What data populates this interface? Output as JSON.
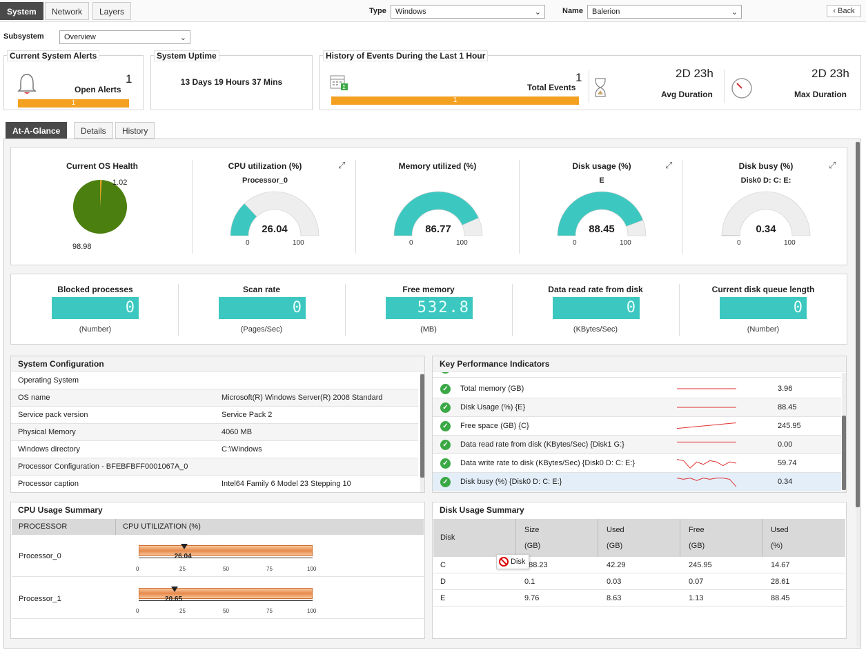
{
  "top_tabs": [
    "System",
    "Network",
    "Layers"
  ],
  "type": {
    "label": "Type",
    "value": "Windows"
  },
  "name": {
    "label": "Name",
    "value": "Balerion"
  },
  "back": "Back",
  "subsystem": {
    "label": "Subsystem",
    "value": "Overview"
  },
  "alerts": {
    "title": "Current System Alerts",
    "count": "1",
    "label": "Open Alerts",
    "bar": "1"
  },
  "uptime": {
    "title": "System Uptime",
    "value": "13 Days 19 Hours 37 Mins"
  },
  "history": {
    "title": "History of Events During the Last 1 Hour",
    "count": "1",
    "label": "Total Events",
    "bar": "1",
    "avg_value": "2D 23h",
    "avg_label": "Avg Duration",
    "max_value": "2D 23h",
    "max_label": "Max Duration"
  },
  "view_tabs": [
    "At-A-Glance",
    "Details",
    "History"
  ],
  "os_health": {
    "title": "Current OS Health",
    "slices": [
      {
        "label": "1.02",
        "value": 1.02,
        "color": "#e8a020"
      },
      {
        "label": "98.98",
        "value": 98.98,
        "color": "#4b7f0f"
      }
    ]
  },
  "gauges": [
    {
      "title": "CPU utilization (%)",
      "sub": "Processor_0",
      "value": 26.04,
      "display": "26.04",
      "min": "0",
      "max": "100"
    },
    {
      "title": "Memory utilized (%)",
      "sub": "",
      "value": 86.77,
      "display": "86.77",
      "min": "0",
      "max": "100"
    },
    {
      "title": "Disk usage (%)",
      "sub": "E",
      "value": 88.45,
      "display": "88.45",
      "min": "0",
      "max": "100"
    },
    {
      "title": "Disk busy (%)",
      "sub": "Disk0 D: C: E:",
      "value": 0.34,
      "display": "0.34",
      "min": "0",
      "max": "100"
    }
  ],
  "metrics": [
    {
      "title": "Blocked processes",
      "value": "0",
      "unit": "(Number)"
    },
    {
      "title": "Scan rate",
      "value": "0",
      "unit": "(Pages/Sec)"
    },
    {
      "title": "Free memory",
      "value": "532.8",
      "unit": "(MB)"
    },
    {
      "title": "Data read rate from disk",
      "value": "0",
      "unit": "(KBytes/Sec)"
    },
    {
      "title": "Current disk queue length",
      "value": "0",
      "unit": "(Number)"
    }
  ],
  "sysconf": {
    "title": "System Configuration",
    "rows": [
      {
        "k": "Operating System",
        "v": ""
      },
      {
        "k": "OS name",
        "v": "Microsoft(R) Windows Server(R) 2008 Standard"
      },
      {
        "k": "Service pack version",
        "v": "Service Pack 2"
      },
      {
        "k": "Physical Memory",
        "v": "4060 MB"
      },
      {
        "k": "Windows directory",
        "v": "C:\\Windows"
      },
      {
        "k": "Processor Configuration - BFEBFBFF0001067A_0",
        "v": ""
      },
      {
        "k": "Processor caption",
        "v": "Intel64 Family 6 Model 23 Stepping 10"
      }
    ]
  },
  "kpi": {
    "title": "Key Performance Indicators",
    "rows": [
      {
        "k": "Total memory (GB)",
        "v": "3.96",
        "spark": [
          5,
          5,
          5,
          5,
          5,
          5,
          5,
          5,
          5,
          5
        ]
      },
      {
        "k": "Disk Usage (%) {E}",
        "v": "88.45",
        "spark": [
          5,
          5,
          5,
          5,
          5,
          5,
          5,
          5,
          5,
          5
        ]
      },
      {
        "k": "Free space (GB) {C}",
        "v": "245.95",
        "spark": [
          3,
          3.5,
          4,
          4.5,
          5,
          5.5,
          6,
          6.5,
          7,
          7.5
        ]
      },
      {
        "k": "Data read rate from disk (KBytes/Sec) {Disk1 G:}",
        "v": "0.00",
        "spark": [
          7,
          7,
          7,
          7,
          7,
          7,
          7,
          7,
          7,
          7
        ]
      },
      {
        "k": "Data write rate to disk (KBytes/Sec) {Disk0 D: C: E:}",
        "v": "59.74",
        "spark": [
          8,
          7,
          1,
          6,
          4,
          7,
          6,
          3,
          6,
          5
        ]
      },
      {
        "k": "Disk busy (%) {Disk0 D: C: E:}",
        "v": "0.34",
        "spark": [
          8,
          7,
          8,
          6,
          8,
          7,
          8,
          8,
          7,
          1
        ]
      }
    ]
  },
  "cpu_summary": {
    "title": "CPU Usage Summary",
    "col1": "PROCESSOR",
    "col2": "CPU UTILIZATION (%)",
    "ticks": [
      "0",
      "25",
      "50",
      "75",
      "100"
    ],
    "rows": [
      {
        "name": "Processor_0",
        "value": 26.04,
        "display": "26.04"
      },
      {
        "name": "Processor_1",
        "value": 20.65,
        "display": "20.65"
      }
    ]
  },
  "disk_summary": {
    "title": "Disk Usage Summary",
    "headers": [
      {
        "a": "Disk",
        "b": ""
      },
      {
        "a": "Size",
        "b": "(GB)"
      },
      {
        "a": "Used",
        "b": "(GB)"
      },
      {
        "a": "Free",
        "b": "(GB)"
      },
      {
        "a": "Used",
        "b": "(%)"
      }
    ],
    "rows": [
      [
        "C",
        "288.23",
        "42.29",
        "245.95",
        "14.67"
      ],
      [
        "D",
        "0.1",
        "0.03",
        "0.07",
        "28.61"
      ],
      [
        "E",
        "9.76",
        "8.63",
        "1.13",
        "88.45"
      ]
    ],
    "tooltip": "Disk"
  },
  "colors": {
    "accent": "#3cc8c0",
    "orange": "#f4a020",
    "dark": "#4a4a4a"
  }
}
